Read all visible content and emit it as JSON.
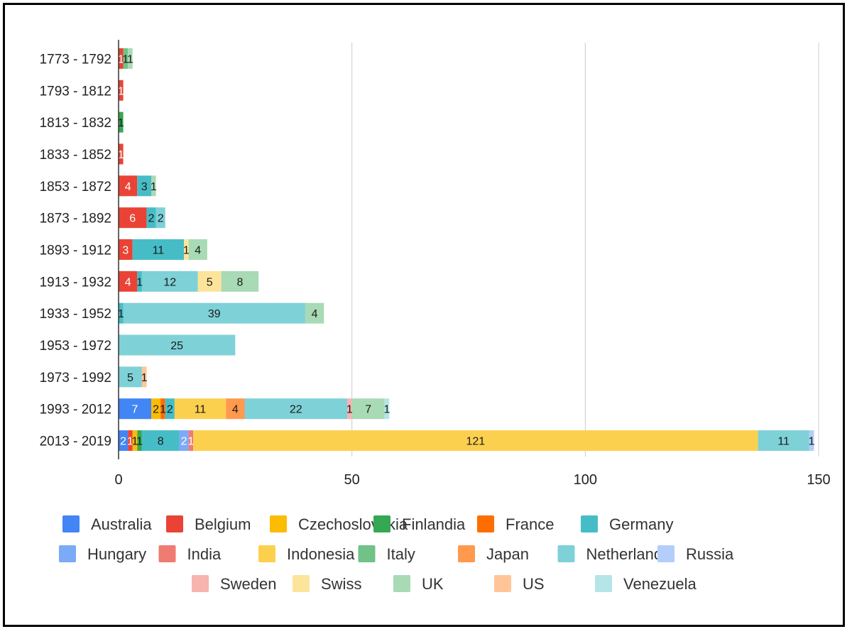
{
  "chart_data": {
    "type": "bar",
    "orientation": "horizontal",
    "stacked": true,
    "grid": true,
    "legend_position": "bottom",
    "xlim": [
      0,
      150
    ],
    "xticks": [
      "0",
      "50",
      "100",
      "150"
    ],
    "categories": [
      "1773 - 1792",
      "1793 - 1812",
      "1813 - 1832",
      "1833 - 1852",
      "1853 - 1872",
      "1873 - 1892",
      "1893 - 1912",
      "1913 - 1932",
      "1933 - 1952",
      "1953 - 1972",
      "1973 - 1992",
      "1993 - 2012",
      "2013 - 2019"
    ],
    "series": [
      {
        "name": "Australia",
        "color": "#4285f4",
        "values": [
          0,
          0,
          0,
          0,
          0,
          0,
          0,
          0,
          0,
          0,
          0,
          7,
          2
        ]
      },
      {
        "name": "Belgium",
        "color": "#ea4335",
        "values": [
          1,
          1,
          0,
          1,
          4,
          6,
          3,
          4,
          0,
          0,
          0,
          0,
          1
        ]
      },
      {
        "name": "Czechoslovakia",
        "color": "#fbbc04",
        "values": [
          0,
          0,
          0,
          0,
          0,
          0,
          0,
          0,
          0,
          0,
          0,
          2,
          1
        ]
      },
      {
        "name": "Finlandia",
        "color": "#34a853",
        "values": [
          0,
          0,
          1,
          0,
          0,
          0,
          0,
          0,
          0,
          0,
          0,
          0,
          1
        ]
      },
      {
        "name": "France",
        "color": "#ff6d01",
        "values": [
          0,
          0,
          0,
          0,
          0,
          0,
          0,
          0,
          0,
          0,
          0,
          1,
          0
        ]
      },
      {
        "name": "Germany",
        "color": "#46bdc6",
        "values": [
          0,
          0,
          0,
          0,
          3,
          2,
          11,
          1,
          1,
          0,
          0,
          2,
          8
        ]
      },
      {
        "name": "Hungary",
        "color": "#7baaf7",
        "values": [
          0,
          0,
          0,
          0,
          0,
          0,
          0,
          0,
          0,
          0,
          0,
          0,
          2
        ]
      },
      {
        "name": "India",
        "color": "#f07b72",
        "values": [
          0,
          0,
          0,
          0,
          0,
          0,
          0,
          0,
          0,
          0,
          0,
          0,
          1
        ]
      },
      {
        "name": "Indonesia",
        "color": "#fcd04f",
        "values": [
          0,
          0,
          0,
          0,
          0,
          0,
          0,
          0,
          0,
          0,
          0,
          11,
          121
        ]
      },
      {
        "name": "Italy",
        "color": "#71c287",
        "values": [
          1,
          0,
          0,
          0,
          0,
          0,
          0,
          0,
          0,
          0,
          0,
          0,
          0
        ]
      },
      {
        "name": "Japan",
        "color": "#ff994d",
        "values": [
          0,
          0,
          0,
          0,
          0,
          0,
          0,
          0,
          0,
          0,
          0,
          4,
          0
        ]
      },
      {
        "name": "Netherlands",
        "color": "#7ed1d7",
        "values": [
          0,
          0,
          0,
          0,
          0,
          2,
          0,
          12,
          39,
          25,
          5,
          22,
          11
        ]
      },
      {
        "name": "Russia",
        "color": "#b3cefb",
        "values": [
          0,
          0,
          0,
          0,
          0,
          0,
          0,
          0,
          0,
          0,
          0,
          0,
          1
        ]
      },
      {
        "name": "Sweden",
        "color": "#f7b4ae",
        "values": [
          0,
          0,
          0,
          0,
          0,
          0,
          0,
          0,
          0,
          0,
          0,
          1,
          0
        ]
      },
      {
        "name": "Swiss",
        "color": "#fde49b",
        "values": [
          0,
          0,
          0,
          0,
          0,
          0,
          1,
          5,
          0,
          0,
          0,
          0,
          0
        ]
      },
      {
        "name": "UK",
        "color": "#a8dab5",
        "values": [
          1,
          0,
          0,
          0,
          1,
          0,
          4,
          8,
          4,
          0,
          0,
          7,
          0
        ]
      },
      {
        "name": "US",
        "color": "#ffc599",
        "values": [
          0,
          0,
          0,
          0,
          0,
          0,
          0,
          0,
          0,
          0,
          1,
          0,
          0
        ]
      },
      {
        "name": "Venezuela",
        "color": "#b5e5e8",
        "values": [
          0,
          0,
          0,
          0,
          0,
          0,
          0,
          0,
          0,
          0,
          0,
          1,
          0
        ]
      }
    ]
  }
}
